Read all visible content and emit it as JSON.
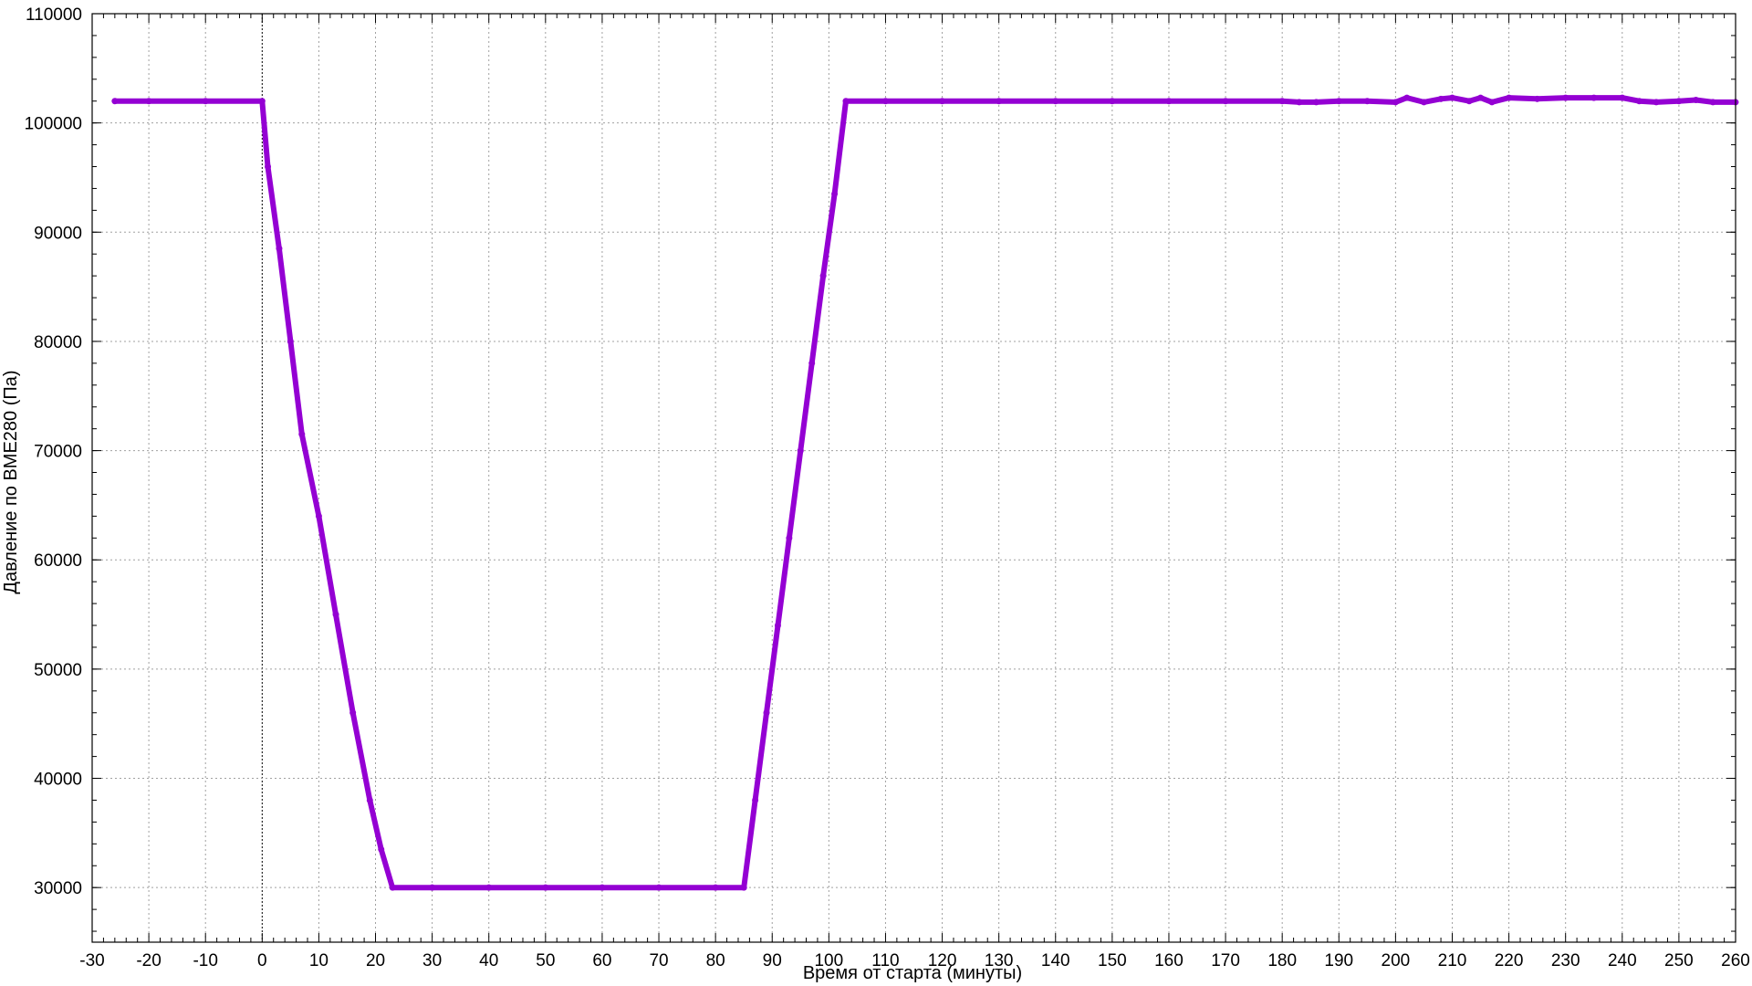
{
  "colors": {
    "series": "#9400d3",
    "grid": "#a0a0a0",
    "background": "#ffffff"
  },
  "chart_data": {
    "type": "line",
    "title": "",
    "xlabel": "Время от старта (минуты)",
    "ylabel": "Давление по BME280 (Па)",
    "xlim": [
      -30,
      260
    ],
    "ylim": [
      25000,
      110000
    ],
    "x_ticks": [
      -30,
      -20,
      -10,
      0,
      10,
      20,
      30,
      40,
      50,
      60,
      70,
      80,
      90,
      100,
      110,
      120,
      130,
      140,
      150,
      160,
      170,
      180,
      190,
      200,
      210,
      220,
      230,
      240,
      250,
      260
    ],
    "y_ticks": [
      30000,
      40000,
      50000,
      60000,
      70000,
      80000,
      90000,
      100000,
      110000
    ],
    "x_tick_labels": [
      "-30",
      "-20",
      "-10",
      "0",
      "10",
      "20",
      "30",
      "40",
      "50",
      "60",
      "70",
      "80",
      "90",
      "100",
      "110",
      "120",
      "130",
      "140",
      "150",
      "160",
      "170",
      "180",
      "190",
      "200",
      "210",
      "220",
      "230",
      "240",
      "250",
      "260"
    ],
    "y_tick_labels": [
      "30000",
      "40000",
      "50000",
      "60000",
      "70000",
      "80000",
      "90000",
      "100000",
      "110000"
    ],
    "grid": true,
    "zero_line_x": 0,
    "series": [
      {
        "x": [
          -26,
          -20,
          -10,
          0,
          1,
          3,
          5,
          7,
          10,
          13,
          16,
          19,
          21,
          23,
          30,
          40,
          50,
          60,
          70,
          80,
          85,
          87,
          89,
          91,
          93,
          95,
          97,
          99,
          101,
          103,
          110,
          120,
          130,
          140,
          150,
          160,
          170,
          180,
          183,
          186,
          190,
          195,
          200,
          202,
          205,
          208,
          210,
          213,
          215,
          217,
          220,
          225,
          230,
          235,
          240,
          243,
          246,
          250,
          253,
          256,
          260
        ],
        "y": [
          102000,
          102000,
          102000,
          102000,
          96000,
          88500,
          80000,
          71500,
          64000,
          55000,
          46000,
          38000,
          33500,
          30000,
          30000,
          30000,
          30000,
          30000,
          30000,
          30000,
          30000,
          38000,
          46000,
          54000,
          62000,
          70000,
          78000,
          86000,
          93500,
          102000,
          102000,
          102000,
          102000,
          102000,
          102000,
          102000,
          102000,
          102000,
          101900,
          101900,
          102000,
          102000,
          101900,
          102300,
          101900,
          102200,
          102300,
          102000,
          102300,
          101900,
          102300,
          102200,
          102300,
          102300,
          102300,
          102000,
          101900,
          102000,
          102100,
          101900,
          101900
        ]
      }
    ]
  }
}
